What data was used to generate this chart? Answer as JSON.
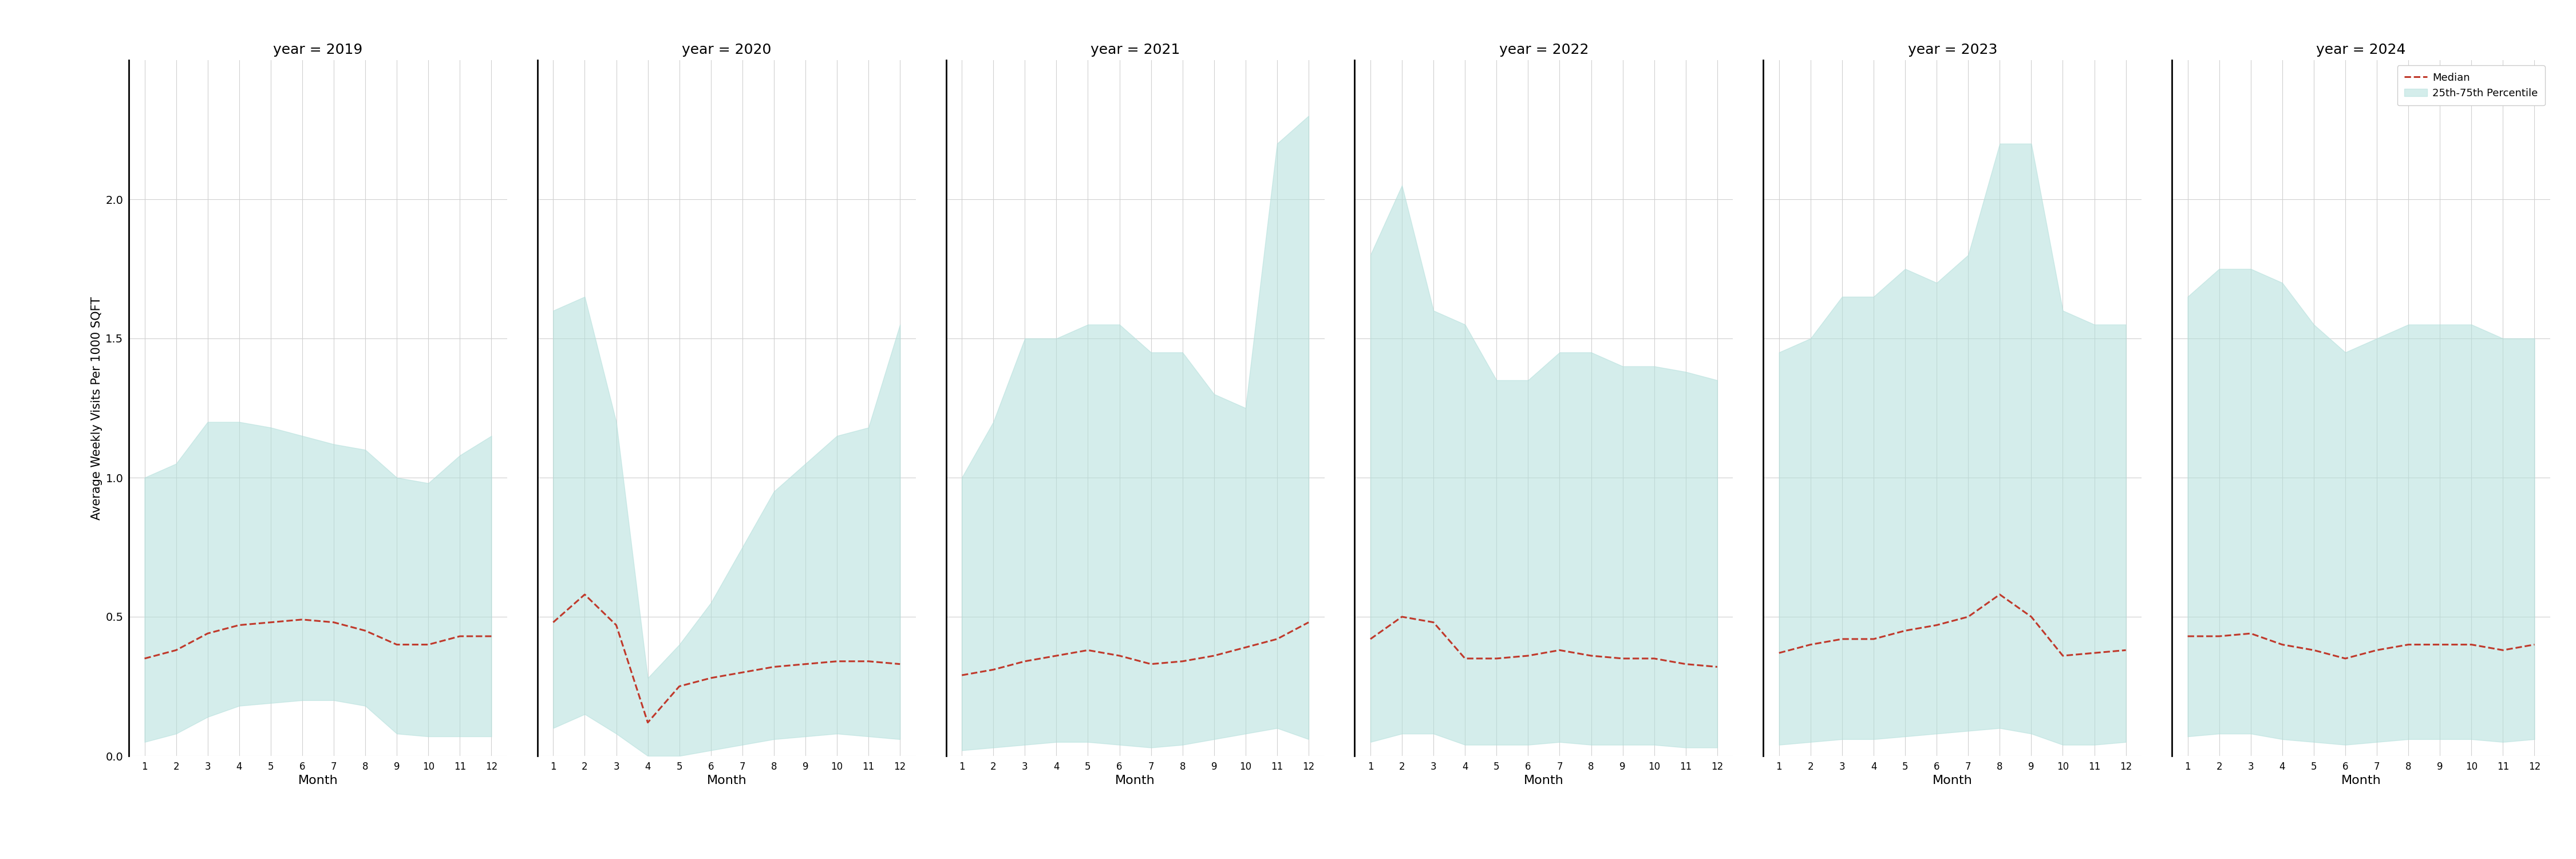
{
  "years": [
    2019,
    2020,
    2021,
    2022,
    2023,
    2024
  ],
  "months": [
    1,
    2,
    3,
    4,
    5,
    6,
    7,
    8,
    9,
    10,
    11,
    12
  ],
  "median": {
    "2019": [
      0.35,
      0.38,
      0.44,
      0.47,
      0.48,
      0.49,
      0.48,
      0.45,
      0.4,
      0.4,
      0.43,
      0.43
    ],
    "2020": [
      0.48,
      0.58,
      0.47,
      0.12,
      0.25,
      0.28,
      0.3,
      0.32,
      0.33,
      0.34,
      0.34,
      0.33
    ],
    "2021": [
      0.29,
      0.31,
      0.34,
      0.36,
      0.38,
      0.36,
      0.33,
      0.34,
      0.36,
      0.39,
      0.42,
      0.48
    ],
    "2022": [
      0.42,
      0.5,
      0.48,
      0.35,
      0.35,
      0.36,
      0.38,
      0.36,
      0.35,
      0.35,
      0.33,
      0.32
    ],
    "2023": [
      0.37,
      0.4,
      0.42,
      0.42,
      0.45,
      0.47,
      0.5,
      0.58,
      0.5,
      0.36,
      0.37,
      0.38
    ],
    "2024": [
      0.43,
      0.43,
      0.44,
      0.4,
      0.38,
      0.35,
      0.38,
      0.4,
      0.4,
      0.4,
      0.38,
      0.4
    ]
  },
  "p25": {
    "2019": [
      0.05,
      0.08,
      0.14,
      0.18,
      0.19,
      0.2,
      0.2,
      0.18,
      0.08,
      0.07,
      0.07,
      0.07
    ],
    "2020": [
      0.1,
      0.15,
      0.08,
      0.0,
      0.0,
      0.02,
      0.04,
      0.06,
      0.07,
      0.08,
      0.07,
      0.06
    ],
    "2021": [
      0.02,
      0.03,
      0.04,
      0.05,
      0.05,
      0.04,
      0.03,
      0.04,
      0.06,
      0.08,
      0.1,
      0.06
    ],
    "2022": [
      0.05,
      0.08,
      0.08,
      0.04,
      0.04,
      0.04,
      0.05,
      0.04,
      0.04,
      0.04,
      0.03,
      0.03
    ],
    "2023": [
      0.04,
      0.05,
      0.06,
      0.06,
      0.07,
      0.08,
      0.09,
      0.1,
      0.08,
      0.04,
      0.04,
      0.05
    ],
    "2024": [
      0.07,
      0.08,
      0.08,
      0.06,
      0.05,
      0.04,
      0.05,
      0.06,
      0.06,
      0.06,
      0.05,
      0.06
    ]
  },
  "p75": {
    "2019": [
      1.0,
      1.05,
      1.2,
      1.2,
      1.18,
      1.15,
      1.12,
      1.1,
      1.0,
      0.98,
      1.08,
      1.15
    ],
    "2020": [
      1.6,
      1.65,
      1.2,
      0.28,
      0.4,
      0.55,
      0.75,
      0.95,
      1.05,
      1.15,
      1.18,
      1.55
    ],
    "2021": [
      1.0,
      1.2,
      1.5,
      1.5,
      1.55,
      1.55,
      1.45,
      1.45,
      1.3,
      1.25,
      2.2,
      2.3
    ],
    "2022": [
      1.8,
      2.05,
      1.6,
      1.55,
      1.35,
      1.35,
      1.45,
      1.45,
      1.4,
      1.4,
      1.38,
      1.35
    ],
    "2023": [
      1.45,
      1.5,
      1.65,
      1.65,
      1.75,
      1.7,
      1.8,
      2.2,
      2.2,
      1.6,
      1.55,
      1.55
    ],
    "2024": [
      1.65,
      1.75,
      1.75,
      1.7,
      1.55,
      1.45,
      1.5,
      1.55,
      1.55,
      1.55,
      1.5,
      1.5
    ]
  },
  "fill_color": "#b2dfdb",
  "fill_alpha": 0.55,
  "line_color": "#c0392b",
  "ylabel": "Average Weekly Visits Per 1000 SQFT",
  "xlabel": "Month",
  "ylim": [
    0.0,
    2.5
  ],
  "yticks": [
    0.0,
    0.5,
    1.0,
    1.5,
    2.0
  ],
  "bg_color": "#ffffff",
  "grid_color": "#d0d0d0",
  "title_prefix": "year = ",
  "legend_median": "Median",
  "legend_fill": "25th-75th Percentile"
}
